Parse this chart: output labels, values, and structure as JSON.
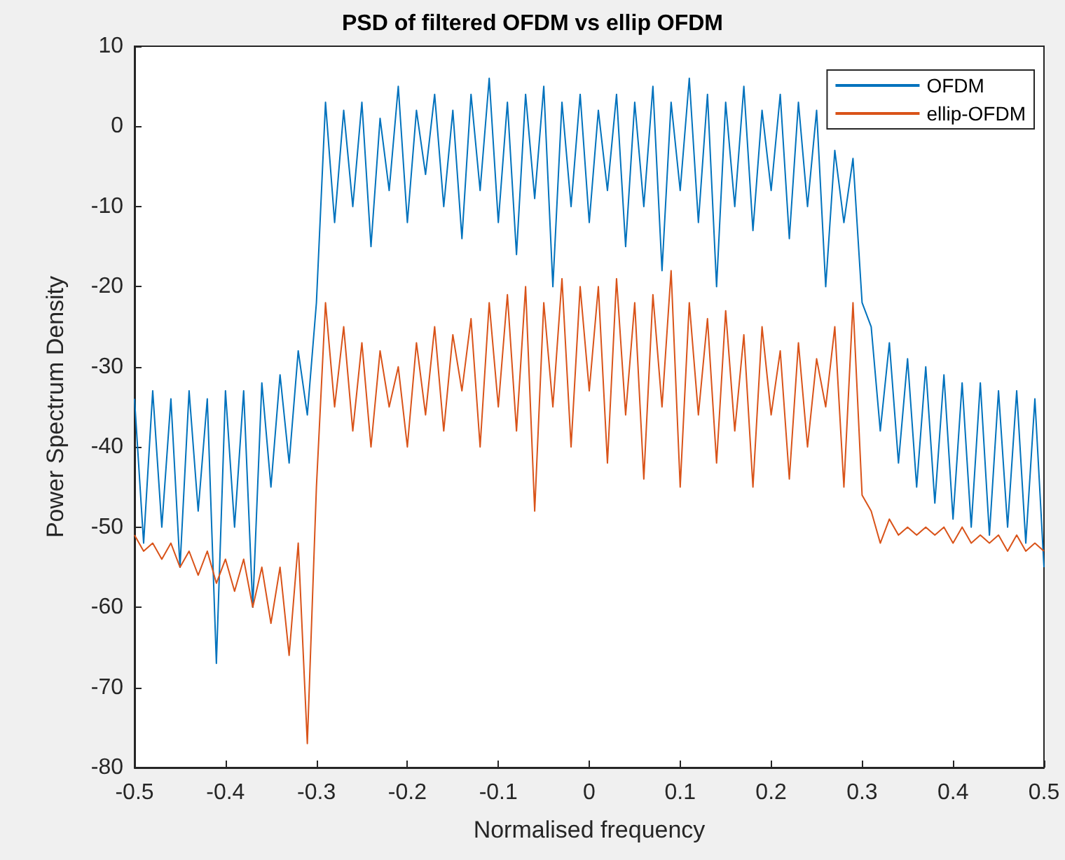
{
  "chart_data": {
    "type": "line",
    "title": "PSD of filtered OFDM vs ellip OFDM",
    "xlabel": "Normalised frequency",
    "ylabel": "Power Spectrum Density",
    "x": [
      -0.5,
      -0.49,
      -0.48,
      -0.47,
      -0.46,
      -0.45,
      -0.44,
      -0.43,
      -0.42,
      -0.41,
      -0.4,
      -0.39,
      -0.38,
      -0.37,
      -0.36,
      -0.35,
      -0.34,
      -0.33,
      -0.32,
      -0.31,
      -0.3,
      -0.29,
      -0.28,
      -0.27,
      -0.26,
      -0.25,
      -0.24,
      -0.23,
      -0.22,
      -0.21,
      -0.2,
      -0.19,
      -0.18,
      -0.17,
      -0.16,
      -0.15,
      -0.14,
      -0.13,
      -0.12,
      -0.11,
      -0.1,
      -0.09,
      -0.08,
      -0.07,
      -0.06,
      -0.05,
      -0.04,
      -0.03,
      -0.02,
      -0.01,
      0,
      0.01,
      0.02,
      0.03,
      0.04,
      0.05,
      0.06,
      0.07,
      0.08,
      0.09,
      0.1,
      0.11,
      0.12,
      0.13,
      0.14,
      0.15,
      0.16,
      0.17,
      0.18,
      0.19,
      0.2,
      0.21,
      0.22,
      0.23,
      0.24,
      0.25,
      0.26,
      0.27,
      0.28,
      0.29,
      0.3,
      0.31,
      0.32,
      0.33,
      0.34,
      0.35,
      0.36,
      0.37,
      0.38,
      0.39,
      0.4,
      0.41,
      0.42,
      0.43,
      0.44,
      0.45,
      0.46,
      0.47,
      0.48,
      0.49,
      0.5
    ],
    "series": [
      {
        "name": "OFDM",
        "color": "#0072bd",
        "values": [
          -34,
          -52,
          -33,
          -50,
          -34,
          -55,
          -33,
          -48,
          -34,
          -67,
          -33,
          -50,
          -33,
          -60,
          -32,
          -45,
          -31,
          -42,
          -28,
          -36,
          -22,
          3,
          -12,
          2,
          -10,
          3,
          -15,
          1,
          -8,
          5,
          -12,
          2,
          -6,
          4,
          -10,
          2,
          -14,
          4,
          -8,
          6,
          -12,
          3,
          -16,
          4,
          -9,
          5,
          -20,
          3,
          -10,
          4,
          -12,
          2,
          -8,
          4,
          -15,
          3,
          -10,
          5,
          -18,
          3,
          -8,
          6,
          -12,
          4,
          -20,
          3,
          -10,
          5,
          -13,
          2,
          -8,
          4,
          -14,
          3,
          -10,
          2,
          -20,
          -3,
          -12,
          -4,
          -22,
          -25,
          -38,
          -27,
          -42,
          -29,
          -45,
          -30,
          -47,
          -31,
          -49,
          -32,
          -50,
          -32,
          -51,
          -33,
          -50,
          -33,
          -52,
          -34,
          -55
        ]
      },
      {
        "name": "ellip-OFDM",
        "color": "#d95319",
        "values": [
          -51,
          -53,
          -52,
          -54,
          -52,
          -55,
          -53,
          -56,
          -53,
          -57,
          -54,
          -58,
          -54,
          -60,
          -55,
          -62,
          -55,
          -66,
          -52,
          -77,
          -45,
          -22,
          -35,
          -25,
          -38,
          -27,
          -40,
          -28,
          -35,
          -30,
          -40,
          -27,
          -36,
          -25,
          -38,
          -26,
          -33,
          -24,
          -40,
          -22,
          -35,
          -21,
          -38,
          -20,
          -48,
          -22,
          -35,
          -19,
          -40,
          -20,
          -33,
          -20,
          -42,
          -19,
          -36,
          -22,
          -44,
          -21,
          -35,
          -18,
          -45,
          -22,
          -36,
          -24,
          -42,
          -23,
          -38,
          -26,
          -45,
          -25,
          -36,
          -28,
          -44,
          -27,
          -40,
          -29,
          -35,
          -25,
          -45,
          -22,
          -46,
          -48,
          -52,
          -49,
          -51,
          -50,
          -51,
          -50,
          -51,
          -50,
          -52,
          -50,
          -52,
          -51,
          -52,
          -51,
          -53,
          -51,
          -53,
          -52,
          -53
        ]
      }
    ],
    "xlim": [
      -0.5,
      0.5
    ],
    "xticks": [
      -0.5,
      -0.4,
      -0.3,
      -0.2,
      -0.1,
      0,
      0.1,
      0.2,
      0.3,
      0.4,
      0.5
    ],
    "ylim": [
      -80,
      10
    ],
    "yticks": [
      -80,
      -70,
      -60,
      -50,
      -40,
      -30,
      -20,
      -10,
      0,
      10
    ],
    "legend": "top right",
    "marker": "none",
    "line_style": "solid"
  }
}
